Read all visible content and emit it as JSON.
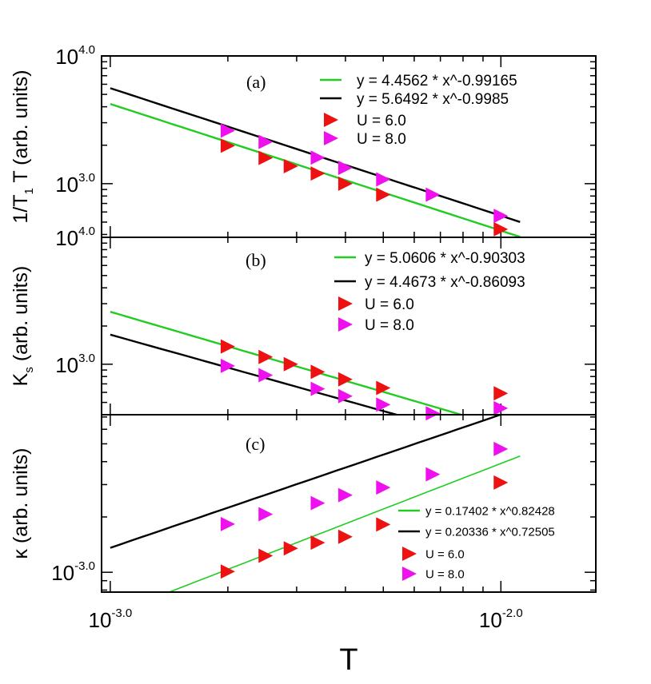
{
  "chart_data": [
    {
      "type": "scatter",
      "panel_label": "(a)",
      "ylabel_main": "1/T",
      "ylabel_sub": "1",
      "ylabel_tail": " T (arb. units)",
      "x_scale": "log",
      "y_scale": "log",
      "xlim": [
        0.00095,
        0.0175
      ],
      "ylim": [
        380,
        10000
      ],
      "y_ticks": [
        {
          "value": 10000,
          "base": "10",
          "exp": "4.0"
        },
        {
          "value": 1000,
          "base": "10",
          "exp": "3.0"
        }
      ],
      "lines": [
        {
          "name": "y = 4.4562 * x^-0.99165",
          "coef": 4.4562,
          "exponent": -0.99165,
          "color": "#22cc22",
          "x_range": [
            0.001,
            0.0112
          ]
        },
        {
          "name": "y = 5.6492 * x^-0.9985",
          "coef": 5.6492,
          "exponent": -0.9985,
          "color": "#000000",
          "x_range": [
            0.001,
            0.0112
          ]
        }
      ],
      "series": [
        {
          "name": "U = 6.0",
          "color": "#ee1111",
          "x": [
            0.002,
            0.0025,
            0.0029,
            0.0034,
            0.004,
            0.005,
            0.01
          ],
          "y": [
            1980,
            1590,
            1370,
            1200,
            1000,
            820,
            440
          ]
        },
        {
          "name": "U = 8.0",
          "color": "#ee11ee",
          "x": [
            0.002,
            0.0025,
            0.0034,
            0.004,
            0.005,
            0.0067,
            0.01
          ],
          "y": [
            2600,
            2120,
            1600,
            1330,
            1080,
            820,
            560
          ]
        }
      ],
      "legend_position": "top-right"
    },
    {
      "type": "scatter",
      "panel_label": "(b)",
      "ylabel_main": "K",
      "ylabel_sub": "s",
      "ylabel_tail": " (arb. units)",
      "x_scale": "log",
      "y_scale": "log",
      "xlim": [
        0.00095,
        0.0175
      ],
      "ylim": [
        400,
        10000
      ],
      "y_ticks": [
        {
          "value": 10000,
          "base": "10",
          "exp": "4.0"
        },
        {
          "value": 1000,
          "base": "10",
          "exp": "3.0"
        }
      ],
      "lines": [
        {
          "name": "y = 5.0606 * x^-0.90303",
          "coef": 5.0606,
          "exponent": -0.90303,
          "color": "#22cc22",
          "x_range": [
            0.001,
            0.0112
          ]
        },
        {
          "name": "y = 4.4673 * x^-0.86093",
          "coef": 4.4673,
          "exponent": -0.86093,
          "color": "#000000",
          "x_range": [
            0.001,
            0.0112
          ]
        }
      ],
      "series": [
        {
          "name": "U = 6.0",
          "color": "#ee1111",
          "x": [
            0.002,
            0.0025,
            0.0029,
            0.0034,
            0.004,
            0.005,
            0.01
          ],
          "y": [
            1380,
            1140,
            1000,
            870,
            760,
            650,
            590
          ]
        },
        {
          "name": "U = 8.0",
          "color": "#ee11ee",
          "x": [
            0.002,
            0.0025,
            0.0034,
            0.004,
            0.005,
            0.0067,
            0.01
          ],
          "y": [
            970,
            820,
            640,
            560,
            480,
            410,
            450
          ]
        }
      ],
      "legend_position": "top-right"
    },
    {
      "type": "scatter",
      "panel_label": "(c)",
      "ylabel_main": "κ",
      "ylabel_sub": "",
      "ylabel_tail": " (arb. units)",
      "x_scale": "log",
      "y_scale": "log",
      "xlim": [
        0.00095,
        0.0175
      ],
      "ylim": [
        0.00078,
        0.0072
      ],
      "y_ticks": [
        {
          "value": 0.001,
          "base": "10",
          "exp": "-3.0"
        }
      ],
      "x_ticks": [
        {
          "value": 0.001,
          "base": "10",
          "exp": "-3.0"
        },
        {
          "value": 0.01,
          "base": "10",
          "exp": "-2.0"
        }
      ],
      "lines": [
        {
          "name": "y = 0.17402 * x^0.82428",
          "coef": 0.17402,
          "exponent": 0.82428,
          "color": "#22cc22",
          "x_range": [
            0.001,
            0.0112
          ]
        },
        {
          "name": "y = 0.20336 * x^0.72505",
          "coef": 0.20336,
          "exponent": 0.72505,
          "color": "#000000",
          "x_range": [
            0.001,
            0.0112
          ]
        }
      ],
      "series": [
        {
          "name": "U = 6.0",
          "color": "#ee1111",
          "x": [
            0.002,
            0.0025,
            0.0029,
            0.0034,
            0.004,
            0.005,
            0.01
          ],
          "y": [
            0.00101,
            0.00123,
            0.00135,
            0.00145,
            0.00156,
            0.00182,
            0.00308
          ]
        },
        {
          "name": "U = 8.0",
          "color": "#ee11ee",
          "x": [
            0.002,
            0.0025,
            0.0034,
            0.004,
            0.005,
            0.0067,
            0.01
          ],
          "y": [
            0.00183,
            0.00207,
            0.00238,
            0.00263,
            0.00289,
            0.00341,
            0.00469
          ]
        }
      ],
      "xlabel": "T",
      "legend_position": "bottom-right"
    }
  ]
}
